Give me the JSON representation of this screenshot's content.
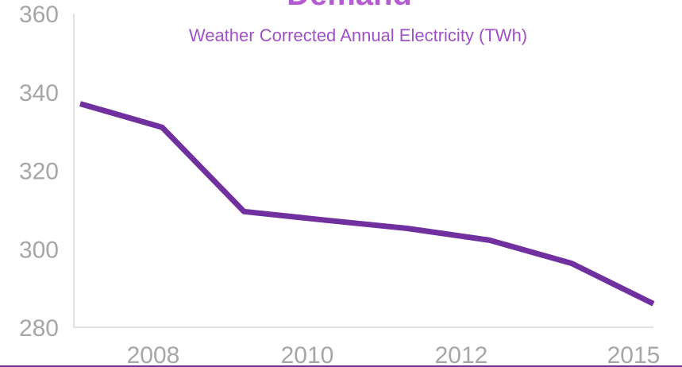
{
  "chart_data": {
    "type": "line",
    "title": "Demand",
    "subtitle": "Weather Corrected Annual Electricity (TWh)",
    "xlabel": "",
    "ylabel": "",
    "x_tick_labels": [
      "2008",
      "2010",
      "2012",
      "2015"
    ],
    "y_tick_labels": [
      "280",
      "300",
      "320",
      "340",
      "360"
    ],
    "ylim": [
      280,
      360
    ],
    "grid": false,
    "series": [
      {
        "x": [
          2007,
          2008,
          2009,
          2010,
          2011,
          2012,
          2013,
          2014
        ],
        "values": [
          337,
          331,
          309.5,
          307.3,
          305.2,
          302.2,
          296.3,
          286
        ]
      }
    ],
    "colors": {
      "line": "#7030a0",
      "title": "#b45ad2",
      "subtitle": "#a050c8",
      "axis": "#d9d9d9",
      "tick": "#a6a6a6",
      "bottom_rule": "#7030a0"
    }
  }
}
